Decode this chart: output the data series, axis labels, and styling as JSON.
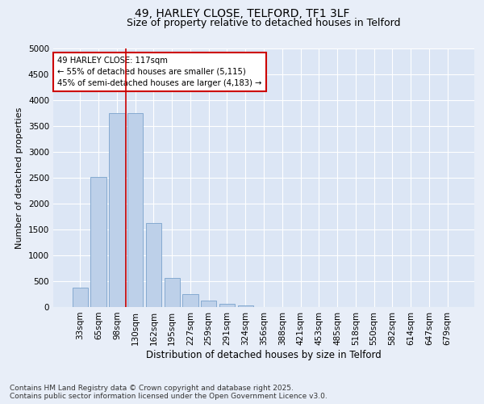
{
  "title1": "49, HARLEY CLOSE, TELFORD, TF1 3LF",
  "title2": "Size of property relative to detached houses in Telford",
  "xlabel": "Distribution of detached houses by size in Telford",
  "ylabel": "Number of detached properties",
  "categories": [
    "33sqm",
    "65sqm",
    "98sqm",
    "130sqm",
    "162sqm",
    "195sqm",
    "227sqm",
    "259sqm",
    "291sqm",
    "324sqm",
    "356sqm",
    "388sqm",
    "421sqm",
    "453sqm",
    "485sqm",
    "518sqm",
    "550sqm",
    "582sqm",
    "614sqm",
    "647sqm",
    "679sqm"
  ],
  "values": [
    370,
    2520,
    3750,
    3750,
    1620,
    560,
    250,
    130,
    60,
    30,
    0,
    0,
    0,
    0,
    0,
    0,
    0,
    0,
    0,
    0,
    0
  ],
  "bar_color": "#bdd0e9",
  "bar_edge_color": "#7aa3cc",
  "vline_x_index": 2.5,
  "vline_color": "#cc0000",
  "annotation_text": "49 HARLEY CLOSE: 117sqm\n← 55% of detached houses are smaller (5,115)\n45% of semi-detached houses are larger (4,183) →",
  "annotation_border_color": "#cc0000",
  "ylim": [
    0,
    5000
  ],
  "yticks": [
    0,
    500,
    1000,
    1500,
    2000,
    2500,
    3000,
    3500,
    4000,
    4500,
    5000
  ],
  "bg_color": "#e8eef8",
  "plot_bg_color": "#dce6f5",
  "footer": "Contains HM Land Registry data © Crown copyright and database right 2025.\nContains public sector information licensed under the Open Government Licence v3.0.",
  "title1_fontsize": 10,
  "title2_fontsize": 9,
  "xlabel_fontsize": 8.5,
  "ylabel_fontsize": 8,
  "tick_fontsize": 7.5,
  "footer_fontsize": 6.5
}
